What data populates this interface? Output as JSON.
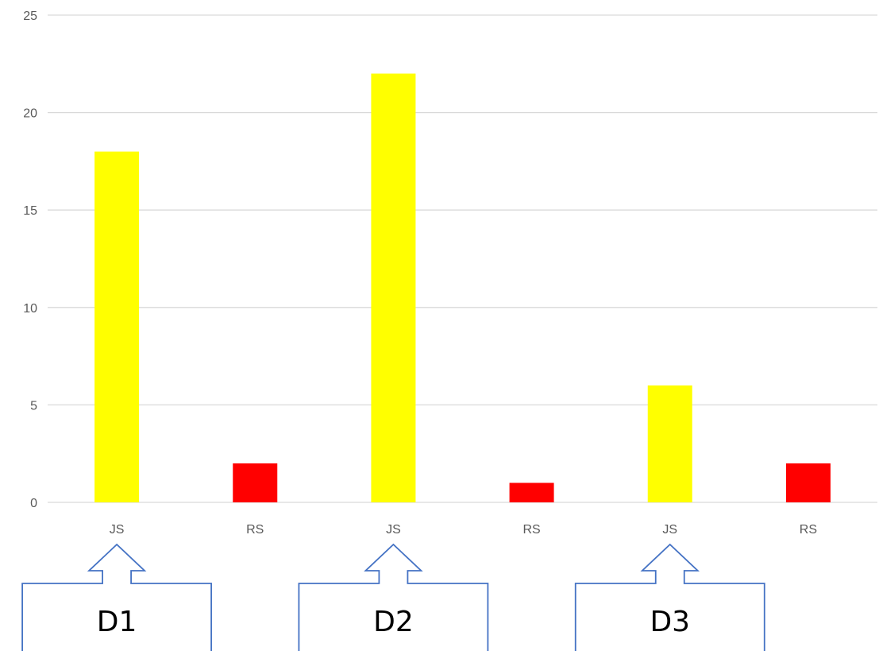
{
  "chart_data": {
    "type": "bar",
    "categories": [
      "JS",
      "RS",
      "JS",
      "RS",
      "JS",
      "RS"
    ],
    "values": [
      18,
      2,
      22,
      1,
      6,
      2
    ],
    "bar_colors": [
      "#FFFF00",
      "#FF0000",
      "#FFFF00",
      "#FF0000",
      "#FFFF00",
      "#FF0000"
    ],
    "ylim": [
      0,
      25
    ],
    "yticks": [
      "0",
      "5",
      "10",
      "15",
      "20",
      "25"
    ],
    "grid": true,
    "legend": "none"
  },
  "annotations": [
    {
      "label": "D1",
      "points_to": "JS"
    },
    {
      "label": "D2",
      "points_to": "JS"
    },
    {
      "label": "D3",
      "points_to": "JS"
    }
  ],
  "colors": {
    "gridline": "#D9D9D9",
    "tick_text": "#595959",
    "callout_border": "#4472C4"
  }
}
